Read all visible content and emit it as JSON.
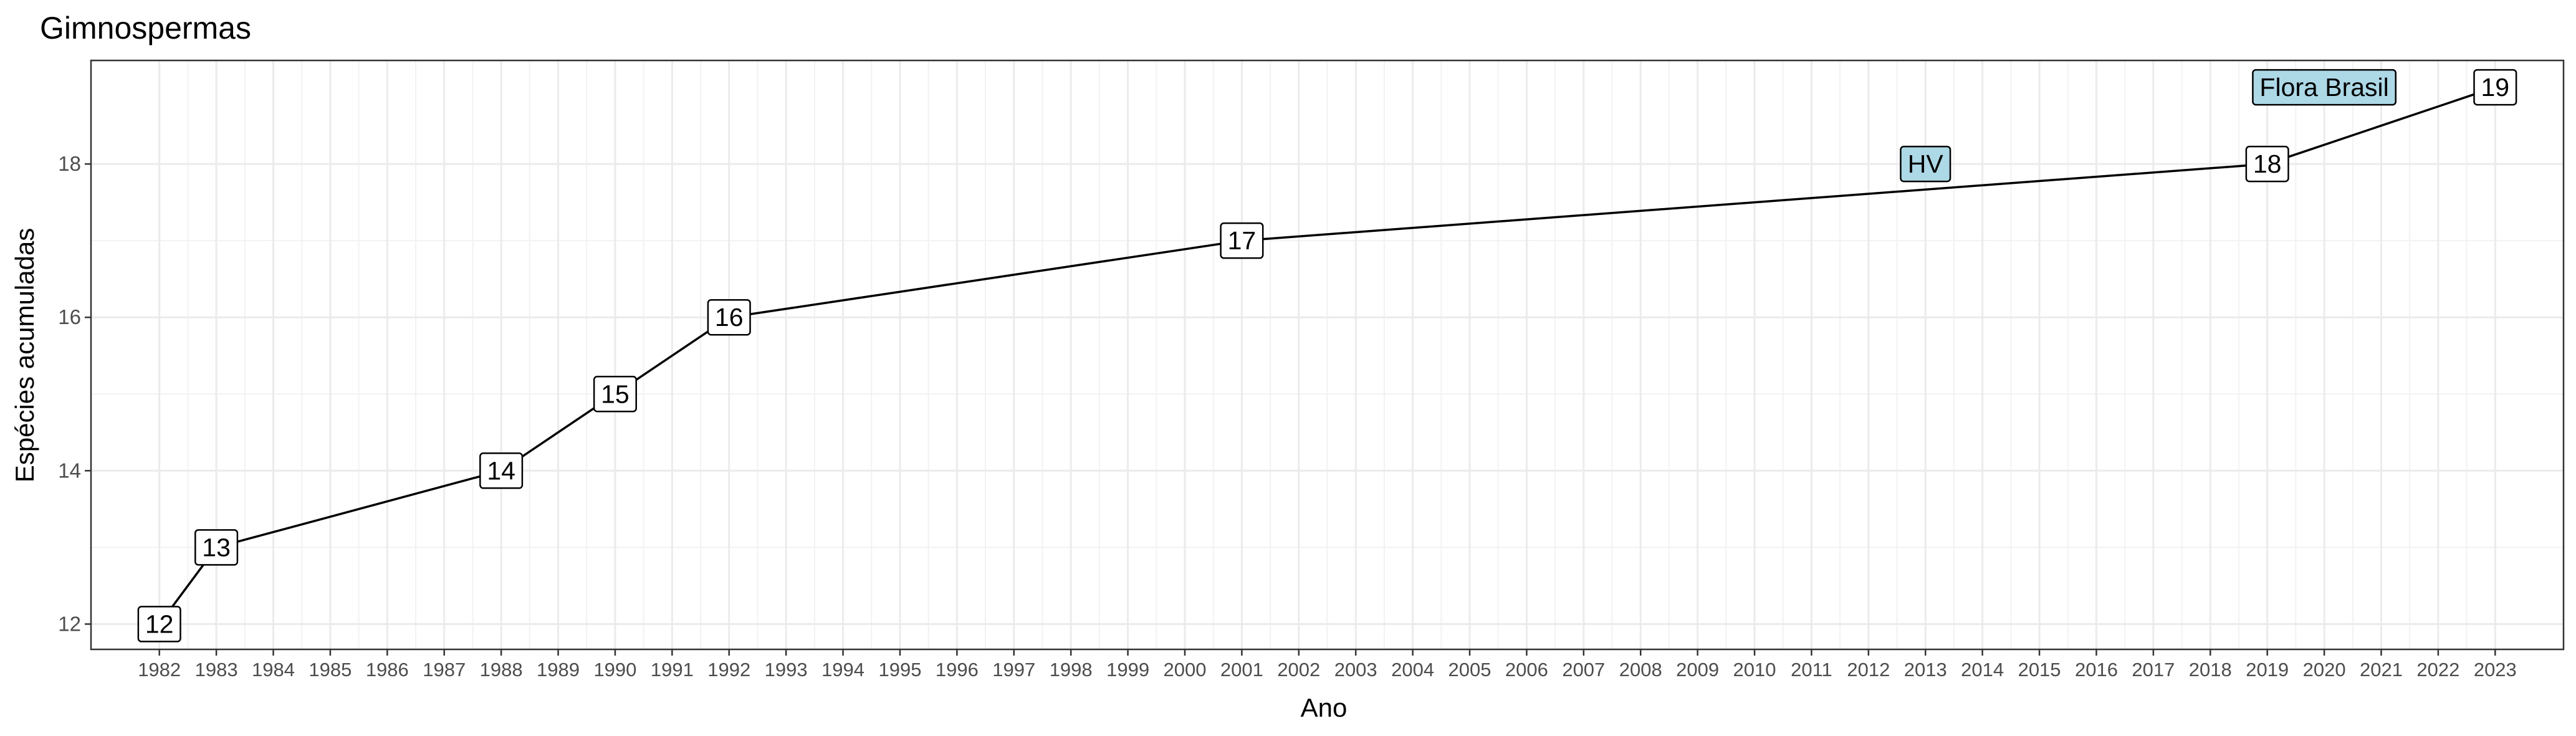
{
  "chart_data": {
    "type": "line",
    "title": "Gimnospermas",
    "xlabel": "Ano",
    "ylabel": "Espécies acumuladas",
    "xlim": [
      1980.8,
      2024.2
    ],
    "ylim": [
      11.67,
      19.35
    ],
    "x_ticks": [
      1982,
      1983,
      1984,
      1985,
      1986,
      1987,
      1988,
      1989,
      1990,
      1991,
      1992,
      1993,
      1994,
      1995,
      1996,
      1997,
      1998,
      1999,
      2000,
      2001,
      2002,
      2003,
      2004,
      2005,
      2006,
      2007,
      2008,
      2009,
      2010,
      2011,
      2012,
      2013,
      2014,
      2015,
      2016,
      2017,
      2018,
      2019,
      2020,
      2021,
      2022,
      2023
    ],
    "y_ticks": [
      12,
      14,
      16,
      18
    ],
    "grid": true,
    "series": [
      {
        "x": [
          1982,
          1983,
          1988,
          1990,
          1992,
          2001,
          2019,
          2023
        ],
        "y": [
          12,
          13,
          14,
          15,
          16,
          17,
          18,
          19
        ],
        "labels": [
          "12",
          "13",
          "14",
          "15",
          "16",
          "17",
          "18",
          "19"
        ]
      }
    ],
    "annotations": [
      {
        "text": "HV",
        "x": 2013,
        "y": 18,
        "fill": "#add8e6"
      },
      {
        "text": "Flora Brasil",
        "x": 2020,
        "y": 19,
        "fill": "#add8e6"
      }
    ]
  }
}
